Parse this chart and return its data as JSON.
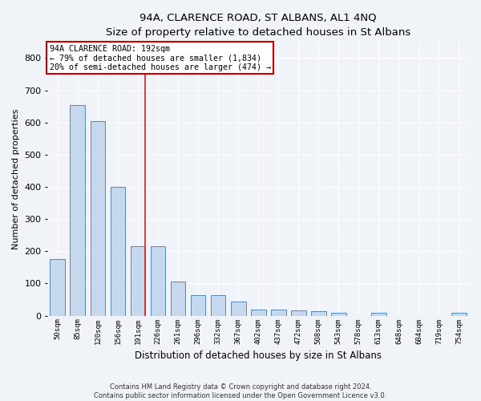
{
  "title": "94A, CLARENCE ROAD, ST ALBANS, AL1 4NQ",
  "subtitle": "Size of property relative to detached houses in St Albans",
  "xlabel": "Distribution of detached houses by size in St Albans",
  "ylabel": "Number of detached properties",
  "bar_labels": [
    "50sqm",
    "85sqm",
    "120sqm",
    "156sqm",
    "191sqm",
    "226sqm",
    "261sqm",
    "296sqm",
    "332sqm",
    "367sqm",
    "402sqm",
    "437sqm",
    "472sqm",
    "508sqm",
    "543sqm",
    "578sqm",
    "613sqm",
    "648sqm",
    "684sqm",
    "719sqm",
    "754sqm"
  ],
  "bar_values": [
    175,
    655,
    605,
    400,
    215,
    215,
    107,
    65,
    65,
    45,
    20,
    18,
    17,
    14,
    8,
    0,
    8,
    0,
    0,
    0,
    8
  ],
  "bar_color": "#c5d8ee",
  "bar_edge_color": "#5588bb",
  "vline_x_idx": 4,
  "vline_color": "#cc2222",
  "annotation_title": "94A CLARENCE ROAD: 192sqm",
  "annotation_line1": "← 79% of detached houses are smaller (1,834)",
  "annotation_line2": "20% of semi-detached houses are larger (474) →",
  "annotation_box_color": "#ffffff",
  "annotation_box_edge": "#cc0000",
  "ylim": [
    0,
    850
  ],
  "yticks": [
    0,
    100,
    200,
    300,
    400,
    500,
    600,
    700,
    800
  ],
  "footer1": "Contains HM Land Registry data © Crown copyright and database right 2024.",
  "footer2": "Contains public sector information licensed under the Open Government Licence v3.0.",
  "bg_color": "#f0f4f8",
  "plot_bg_color": "#f0f4f8",
  "grid_color": "#ffffff"
}
